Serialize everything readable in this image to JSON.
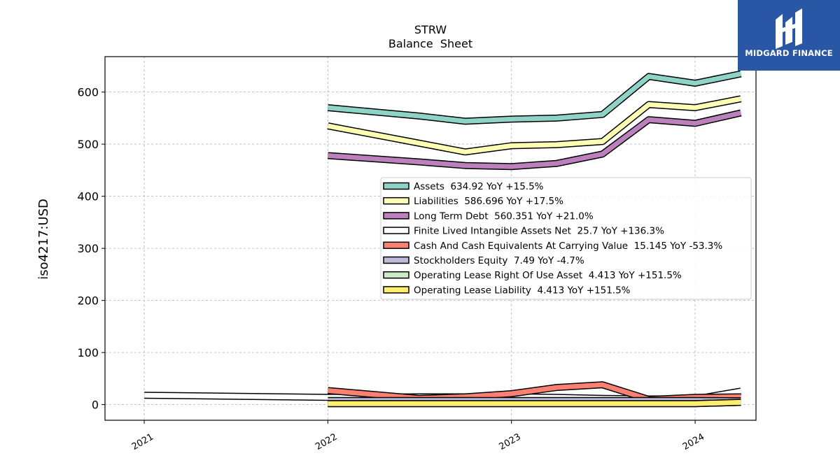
{
  "logo": {
    "text": "MIDGARD FINANCE",
    "color": "#2a56a6"
  },
  "chart_data": {
    "type": "line",
    "title": "STRW",
    "subtitle": "Balance  Sheet",
    "xlabel": "",
    "ylabel": "iso4217:USD",
    "xlim": [
      "2020-10-15",
      "2024-05-01"
    ],
    "ylim": [
      -30,
      668
    ],
    "x_ticks": [
      "2021",
      "2022",
      "2023",
      "2024"
    ],
    "y_ticks": [
      0,
      100,
      200,
      300,
      400,
      500,
      600
    ],
    "grid": true,
    "legend_position": "center-right",
    "series": [
      {
        "name": "Assets",
        "legend": "Assets  634.92 YoY +15.5%",
        "color": "#8dd3c7",
        "points": [
          [
            "2022-01-01",
            570
          ],
          [
            "2022-07-01",
            554
          ],
          [
            "2022-10-01",
            544
          ],
          [
            "2023-01-01",
            548
          ],
          [
            "2023-04-01",
            550
          ],
          [
            "2023-07-01",
            557
          ],
          [
            "2023-10-01",
            630
          ],
          [
            "2024-01-01",
            617
          ],
          [
            "2024-04-01",
            635
          ]
        ]
      },
      {
        "name": "Liabilities",
        "legend": "Liabilities  586.696 YoY +17.5%",
        "color": "#ffffb3",
        "points": [
          [
            "2022-01-01",
            535
          ],
          [
            "2022-07-01",
            502
          ],
          [
            "2022-10-01",
            485
          ],
          [
            "2023-01-01",
            497
          ],
          [
            "2023-04-01",
            499
          ],
          [
            "2023-07-01",
            505
          ],
          [
            "2023-10-01",
            576
          ],
          [
            "2024-01-01",
            570
          ],
          [
            "2024-04-01",
            587
          ]
        ]
      },
      {
        "name": "Long Term Debt",
        "legend": "Long Term Debt  560.351 YoY +21.0%",
        "color": "#bc80bd",
        "points": [
          [
            "2022-01-01",
            478
          ],
          [
            "2022-07-01",
            466
          ],
          [
            "2022-10-01",
            459
          ],
          [
            "2023-01-01",
            457
          ],
          [
            "2023-04-01",
            463
          ],
          [
            "2023-07-01",
            481
          ],
          [
            "2023-10-01",
            547
          ],
          [
            "2024-01-01",
            540
          ],
          [
            "2024-04-01",
            560
          ]
        ]
      },
      {
        "name": "Finite Lived Intangible Assets Net",
        "legend": "Finite Lived Intangible Assets Net  25.7 YoY +136.3%",
        "color": "#ffffff",
        "points": [
          [
            "2021-01-01",
            18
          ],
          [
            "2022-01-01",
            14
          ],
          [
            "2022-07-01",
            15
          ],
          [
            "2022-10-01",
            15
          ],
          [
            "2023-01-01",
            15
          ],
          [
            "2023-04-01",
            14
          ],
          [
            "2023-07-01",
            12
          ],
          [
            "2023-10-01",
            11
          ],
          [
            "2024-01-01",
            11
          ],
          [
            "2024-04-01",
            26
          ]
        ]
      },
      {
        "name": "Cash And Cash Equivalents At Carrying Value",
        "legend": "Cash And Cash Equivalents At Carrying Value  15.145 YoY -53.3%",
        "color": "#fb8072",
        "points": [
          [
            "2022-01-01",
            27
          ],
          [
            "2022-07-01",
            12
          ],
          [
            "2022-10-01",
            15
          ],
          [
            "2023-01-01",
            21
          ],
          [
            "2023-04-01",
            33
          ],
          [
            "2023-07-01",
            38
          ],
          [
            "2023-10-01",
            10
          ],
          [
            "2024-01-01",
            14
          ],
          [
            "2024-04-01",
            15
          ]
        ]
      },
      {
        "name": "Stockholders Equity",
        "legend": "Stockholders Equity  7.49 YoY -4.7%",
        "color": "#bebada",
        "points": [
          [
            "2022-01-01",
            8
          ],
          [
            "2022-07-01",
            8
          ],
          [
            "2022-10-01",
            8
          ],
          [
            "2023-01-01",
            8
          ],
          [
            "2023-04-01",
            8
          ],
          [
            "2023-07-01",
            8
          ],
          [
            "2023-10-01",
            8
          ],
          [
            "2024-01-01",
            8
          ],
          [
            "2024-04-01",
            7.5
          ]
        ]
      },
      {
        "name": "Operating Lease Right Of Use Asset",
        "legend": "Operating Lease Right Of Use Asset  4.413 YoY +151.5%",
        "color": "#ccebc5",
        "points": [
          [
            "2022-01-01",
            2
          ],
          [
            "2022-07-01",
            2
          ],
          [
            "2022-10-01",
            2
          ],
          [
            "2023-01-01",
            2
          ],
          [
            "2023-04-01",
            2
          ],
          [
            "2023-07-01",
            2
          ],
          [
            "2023-10-01",
            2
          ],
          [
            "2024-01-01",
            2
          ],
          [
            "2024-04-01",
            4.4
          ]
        ]
      },
      {
        "name": "Operating Lease Liability",
        "legend": "Operating Lease Liability  4.413 YoY +151.5%",
        "color": "#ffed6f",
        "points": [
          [
            "2022-01-01",
            2
          ],
          [
            "2022-07-01",
            2
          ],
          [
            "2022-10-01",
            2
          ],
          [
            "2023-01-01",
            2
          ],
          [
            "2023-04-01",
            2
          ],
          [
            "2023-07-01",
            2
          ],
          [
            "2023-10-01",
            2
          ],
          [
            "2024-01-01",
            2
          ],
          [
            "2024-04-01",
            4.4
          ]
        ]
      }
    ]
  }
}
